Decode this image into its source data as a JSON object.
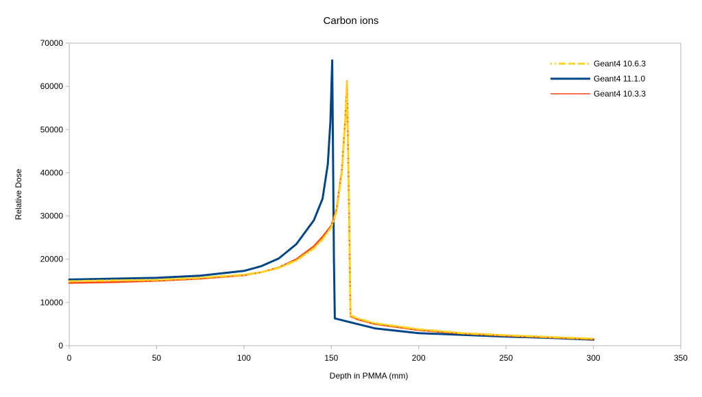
{
  "chart_data": {
    "type": "line",
    "title": "Carbon ions",
    "xlabel": "Depth in PMMA (mm)",
    "ylabel": "Relative Dose",
    "xlim": [
      0,
      350
    ],
    "ylim": [
      0,
      70000
    ],
    "xticks": [
      0,
      50,
      100,
      150,
      200,
      250,
      300,
      350
    ],
    "yticks": [
      0,
      10000,
      20000,
      30000,
      40000,
      50000,
      60000,
      70000
    ],
    "grid": false,
    "legend_position": "upper right (inside plot)",
    "series": [
      {
        "name": "Geant4 10.6.3",
        "color": "#ffd320",
        "style": "dash-dot",
        "x": [
          0,
          25,
          50,
          75,
          100,
          110,
          120,
          130,
          140,
          145,
          150,
          153,
          156,
          158,
          159,
          160,
          161,
          165,
          175,
          200,
          225,
          250,
          275,
          300
        ],
        "y": [
          14900,
          15100,
          15200,
          15700,
          16400,
          17000,
          18000,
          19700,
          22500,
          24600,
          27400,
          31000,
          40000,
          52000,
          61000,
          35000,
          7000,
          6300,
          5200,
          3800,
          2900,
          2400,
          2000,
          1600
        ]
      },
      {
        "name": "Geant4 11.1.0",
        "color": "#004586",
        "style": "solid",
        "x": [
          0,
          25,
          50,
          75,
          100,
          110,
          120,
          130,
          140,
          145,
          148,
          149.5,
          150.5,
          151.5,
          152,
          155,
          165,
          175,
          200,
          225,
          250,
          275,
          300
        ],
        "y": [
          15300,
          15500,
          15700,
          16200,
          17300,
          18400,
          20200,
          23500,
          29000,
          34000,
          42000,
          52000,
          66000,
          20000,
          6300,
          6000,
          5000,
          4000,
          2900,
          2500,
          2100,
          1800,
          1400
        ]
      },
      {
        "name": "Geant4 10.3.3",
        "color": "#ff420e",
        "style": "solid",
        "x": [
          0,
          25,
          50,
          75,
          100,
          110,
          120,
          130,
          140,
          145,
          150,
          153,
          156,
          158,
          159,
          160,
          161,
          165,
          175,
          200,
          225,
          250,
          275,
          300
        ],
        "y": [
          14500,
          14700,
          15000,
          15500,
          16300,
          17000,
          18100,
          20000,
          23000,
          25200,
          27800,
          31500,
          40500,
          52500,
          61200,
          35000,
          6800,
          6100,
          5000,
          3600,
          2800,
          2300,
          1900,
          1500
        ]
      }
    ]
  },
  "legend": {
    "items": [
      {
        "label": "Geant4 10.6.3",
        "color": "#ffd320",
        "style": "dash-dot"
      },
      {
        "label": "Geant4 11.1.0",
        "color": "#004586",
        "style": "solid"
      },
      {
        "label": "Geant4 10.3.3",
        "color": "#ff420e",
        "style": "solid"
      }
    ]
  },
  "axis": {
    "x_tick_labels": [
      "0",
      "50",
      "100",
      "150",
      "200",
      "250",
      "300",
      "350"
    ],
    "y_tick_labels": [
      "0",
      "10000",
      "20000",
      "30000",
      "40000",
      "50000",
      "60000",
      "70000"
    ]
  }
}
